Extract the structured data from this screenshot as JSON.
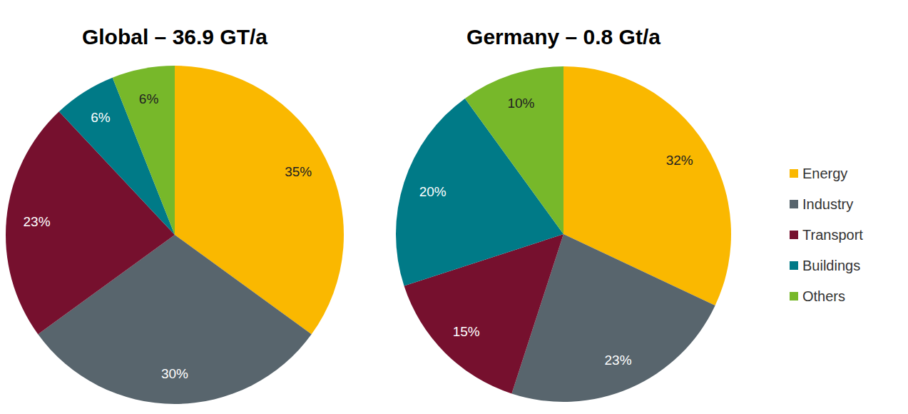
{
  "chart_data": [
    {
      "type": "pie",
      "title": "Global – 36.9 GT/a",
      "categories": [
        "Energy",
        "Industry",
        "Transport",
        "Buildings",
        "Others"
      ],
      "values": [
        35,
        30,
        23,
        6,
        6
      ],
      "value_labels": [
        "35%",
        "30%",
        "23%",
        "6%",
        "6%"
      ],
      "colors": [
        "#fab800",
        "#58656d",
        "#76102e",
        "#007a87",
        "#77b82a"
      ],
      "data_labels": true
    },
    {
      "type": "pie",
      "title": "Germany – 0.8 Gt/a",
      "categories": [
        "Energy",
        "Industry",
        "Transport",
        "Buildings",
        "Others"
      ],
      "values": [
        32,
        23,
        15,
        20,
        10
      ],
      "value_labels": [
        "32%",
        "23%",
        "15%",
        "20%",
        "10%"
      ],
      "colors": [
        "#fab800",
        "#58656d",
        "#76102e",
        "#007a87",
        "#77b82a"
      ],
      "data_labels": true,
      "legend": "right"
    }
  ]
}
